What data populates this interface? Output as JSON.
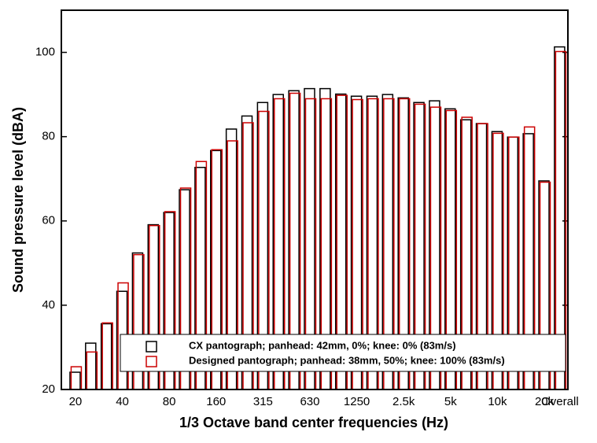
{
  "chart_data": {
    "type": "bar",
    "x_label": "1/3 Octave band center frequencies (Hz)",
    "y_label": "Sound pressure level (dBA)",
    "categories": [
      "20",
      null,
      null,
      "40",
      null,
      null,
      "80",
      null,
      null,
      "160",
      null,
      null,
      "315",
      null,
      null,
      "630",
      null,
      null,
      "1250",
      null,
      null,
      "2.5k",
      null,
      null,
      "5k",
      null,
      null,
      "10k",
      null,
      null,
      "20k",
      "Overall"
    ],
    "series": [
      {
        "name": "CX pantograph; panhead: 42mm, 0%; knee: 0% (83m/s)",
        "color": "#000000",
        "values": [
          24.1,
          31.0,
          35.6,
          43.3,
          52.4,
          59.1,
          62.0,
          67.4,
          72.7,
          76.7,
          81.8,
          84.9,
          88.1,
          90.0,
          90.9,
          91.4,
          91.4,
          90.1,
          89.6,
          89.6,
          90.0,
          89.2,
          88.1,
          88.5,
          86.6,
          84.0,
          83.1,
          81.2,
          79.9,
          80.7,
          69.5,
          101.3
        ]
      },
      {
        "name": "Designed pantograph; panhead: 38mm, 50%; knee: 100% (83m/s)",
        "color": "#cc0000",
        "values": [
          25.4,
          28.9,
          35.8,
          45.3,
          52.0,
          58.9,
          62.2,
          67.8,
          74.1,
          76.9,
          79.0,
          83.3,
          86.0,
          89.0,
          90.3,
          89.0,
          89.0,
          89.8,
          88.8,
          89.0,
          89.0,
          89.0,
          87.7,
          87.0,
          86.2,
          84.6,
          83.1,
          80.8,
          79.9,
          82.3,
          69.2,
          100.2
        ]
      }
    ],
    "ylim": [
      20,
      110
    ],
    "yticks": [
      20,
      40,
      60,
      80,
      100
    ],
    "grid": false,
    "legend": "lower right"
  }
}
